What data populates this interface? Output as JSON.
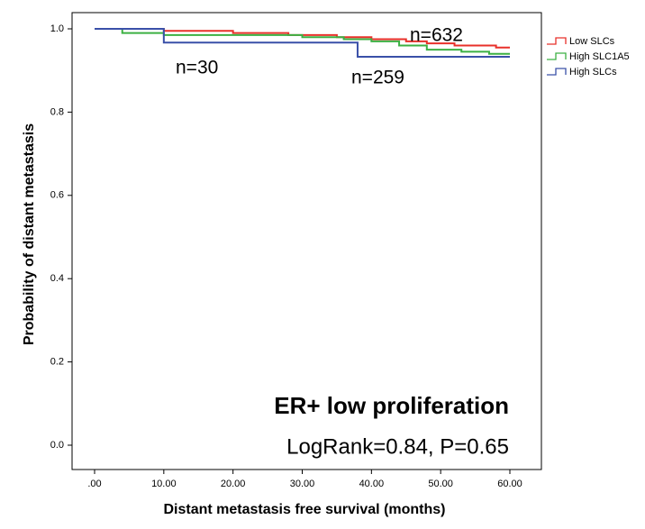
{
  "chart_data": {
    "type": "step",
    "title": "ER+ low proliferation",
    "subtitle": "LogRank=0.84, P=0.65",
    "x_label": "Distant metastasis free survival (months)",
    "y_label": "Probability of distant metastasis",
    "annotations": [
      "n=30",
      "n=259",
      "n=632"
    ],
    "xlim": [
      0,
      60
    ],
    "ylim": [
      0,
      1
    ],
    "xticks": [
      {
        "value": 0,
        "label": ".00"
      },
      {
        "value": 10,
        "label": "10.00"
      },
      {
        "value": 20,
        "label": "20.00"
      },
      {
        "value": 30,
        "label": "30.00"
      },
      {
        "value": 40,
        "label": "40.00"
      },
      {
        "value": 50,
        "label": "50.00"
      },
      {
        "value": 60,
        "label": "60.00"
      }
    ],
    "yticks": [
      {
        "value": 0,
        "label": "0.0"
      },
      {
        "value": 0.2,
        "label": "0.2"
      },
      {
        "value": 0.4,
        "label": "0.4"
      },
      {
        "value": 0.6,
        "label": "0.6"
      },
      {
        "value": 0.8,
        "label": "0.8"
      },
      {
        "value": 1,
        "label": "1.0"
      }
    ],
    "series": [
      {
        "name": "Low SLCs",
        "color": "#e8302a",
        "x": [
          0,
          10,
          20,
          28,
          35,
          40,
          45,
          48,
          52,
          58,
          60
        ],
        "values": [
          1.0,
          0.995,
          0.99,
          0.985,
          0.98,
          0.975,
          0.97,
          0.965,
          0.96,
          0.955,
          0.955
        ]
      },
      {
        "name": "High SLC1A5",
        "color": "#3cb043",
        "x": [
          0,
          4,
          10,
          30,
          36,
          40,
          44,
          48,
          53,
          57,
          60
        ],
        "values": [
          1.0,
          0.99,
          0.985,
          0.98,
          0.975,
          0.97,
          0.96,
          0.95,
          0.945,
          0.94,
          0.94
        ]
      },
      {
        "name": "High SLCs",
        "color": "#3a50a8",
        "x": [
          0,
          10,
          38,
          60
        ],
        "values": [
          1.0,
          0.967,
          0.933,
          0.933
        ]
      }
    ]
  }
}
